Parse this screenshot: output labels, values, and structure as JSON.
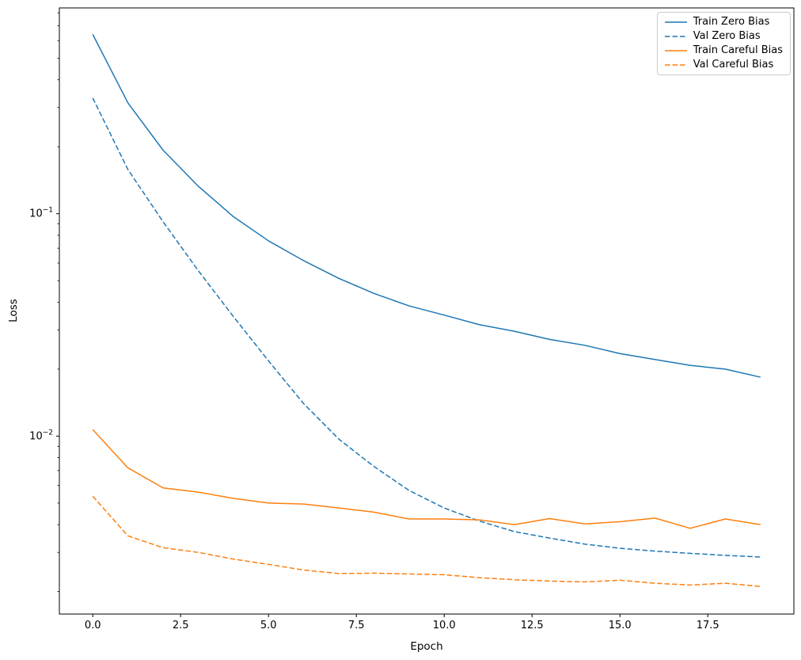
{
  "figure": {
    "background_color": "#ffffff",
    "text_color": "#000000"
  },
  "chart_data": {
    "type": "line",
    "title": "",
    "xlabel": "Epoch",
    "ylabel": "Loss",
    "yscale": "log",
    "grid": false,
    "legend_position": "upper right",
    "xlim": [
      -0.95,
      19.95
    ],
    "ylim_log10": [
      -2.8,
      -0.075
    ],
    "x": [
      0,
      1,
      2,
      3,
      4,
      5,
      6,
      7,
      8,
      9,
      10,
      11,
      12,
      13,
      14,
      15,
      16,
      17,
      18,
      19
    ],
    "xticks": [
      {
        "v": 0,
        "label": "0.0"
      },
      {
        "v": 2.5,
        "label": "2.5"
      },
      {
        "v": 5,
        "label": "5.0"
      },
      {
        "v": 7.5,
        "label": "7.5"
      },
      {
        "v": 10,
        "label": "10.0"
      },
      {
        "v": 12.5,
        "label": "12.5"
      },
      {
        "v": 15,
        "label": "15.0"
      },
      {
        "v": 17.5,
        "label": "17.5"
      }
    ],
    "yticks": [
      {
        "v": 0.1,
        "base": "10",
        "exp": "−1"
      },
      {
        "v": 0.01,
        "base": "10",
        "exp": "−2"
      }
    ],
    "series": [
      {
        "name": "Train Zero Bias",
        "color": "#1f77b4",
        "dash": "solid",
        "values": [
          0.64,
          0.315,
          0.193,
          0.133,
          0.097,
          0.0755,
          0.0615,
          0.0512,
          0.0438,
          0.0385,
          0.035,
          0.0317,
          0.0296,
          0.0272,
          0.0256,
          0.0235,
          0.0221,
          0.0208,
          0.02,
          0.0184
        ]
      },
      {
        "name": "Val Zero Bias",
        "color": "#1f77b4",
        "dash": "dashed",
        "values": [
          0.331,
          0.158,
          0.092,
          0.0555,
          0.0345,
          0.0218,
          0.014,
          0.0097,
          0.0073,
          0.0057,
          0.00475,
          0.00415,
          0.00372,
          0.00348,
          0.00327,
          0.00313,
          0.00304,
          0.00297,
          0.00291,
          0.00286
        ]
      },
      {
        "name": "Train Careful Bias",
        "color": "#ff7f0e",
        "dash": "solid",
        "values": [
          0.0107,
          0.0072,
          0.00585,
          0.0056,
          0.00525,
          0.005,
          0.00495,
          0.00475,
          0.00455,
          0.00424,
          0.00424,
          0.0042,
          0.004,
          0.00426,
          0.00403,
          0.00412,
          0.00428,
          0.00385,
          0.00424,
          0.004
        ]
      },
      {
        "name": "Val Careful Bias",
        "color": "#ff7f0e",
        "dash": "dashed",
        "values": [
          0.00537,
          0.00356,
          0.00315,
          0.003,
          0.0028,
          0.00265,
          0.0025,
          0.00241,
          0.00242,
          0.0024,
          0.00238,
          0.00231,
          0.00226,
          0.00223,
          0.00221,
          0.00225,
          0.00218,
          0.00214,
          0.00218,
          0.00211
        ]
      }
    ]
  }
}
